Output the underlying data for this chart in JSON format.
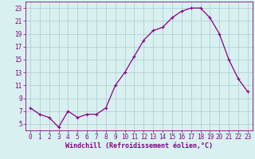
{
  "x": [
    0,
    1,
    2,
    3,
    4,
    5,
    6,
    7,
    8,
    9,
    10,
    11,
    12,
    13,
    14,
    15,
    16,
    17,
    18,
    19,
    20,
    21,
    22,
    23
  ],
  "y": [
    7.5,
    6.5,
    6.0,
    4.5,
    7.0,
    6.0,
    6.5,
    6.5,
    7.5,
    11.0,
    13.0,
    15.5,
    18.0,
    19.5,
    20.0,
    21.5,
    22.5,
    23.0,
    23.0,
    21.5,
    19.0,
    15.0,
    12.0,
    10.0
  ],
  "line_color": "#880088",
  "marker": "+",
  "marker_size": 3,
  "background_color": "#d8f0f0",
  "grid_color": "#aacccc",
  "xlabel": "Windchill (Refroidissement éolien,°C)",
  "ylabel": "",
  "yticks": [
    5,
    7,
    9,
    11,
    13,
    15,
    17,
    19,
    21,
    23
  ],
  "xticks": [
    0,
    1,
    2,
    3,
    4,
    5,
    6,
    7,
    8,
    9,
    10,
    11,
    12,
    13,
    14,
    15,
    16,
    17,
    18,
    19,
    20,
    21,
    22,
    23
  ],
  "ylim": [
    4.0,
    24.0
  ],
  "xlim": [
    -0.5,
    23.5
  ],
  "xlabel_fontsize": 6.0,
  "tick_fontsize": 5.5,
  "linewidth": 0.9
}
